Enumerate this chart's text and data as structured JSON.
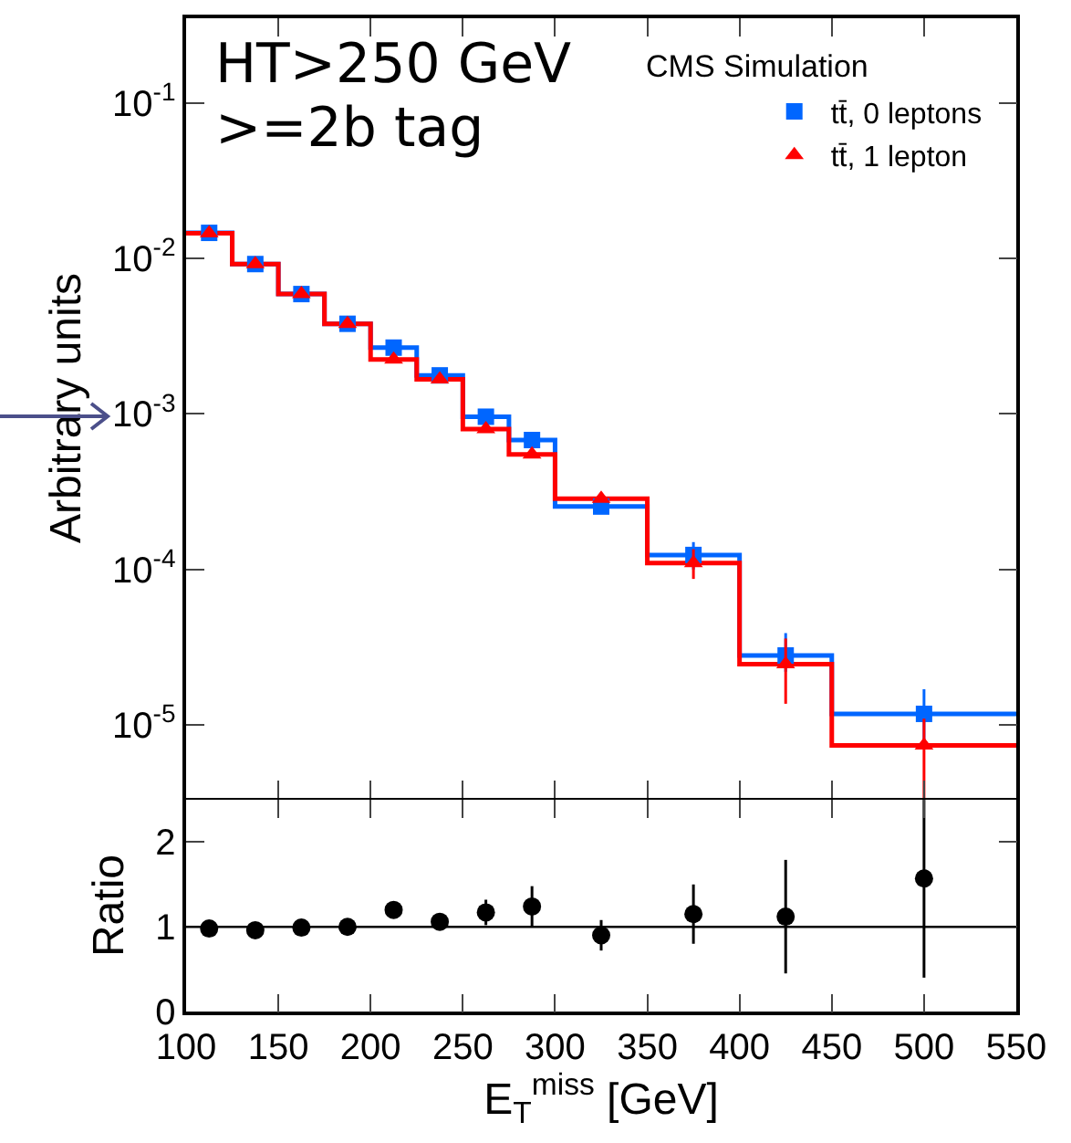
{
  "chart_data": [
    {
      "type": "histogram",
      "ylabel": "Arbitrary units",
      "annotations": [
        "HT>250 GeV",
        ">=2b tag",
        "CMS Simulation"
      ],
      "bins": [
        100,
        125,
        150,
        175,
        200,
        225,
        250,
        275,
        300,
        350,
        400,
        450,
        550
      ],
      "series": [
        {
          "color": "#0066ff",
          "values": [
            0.0146,
            0.0092,
            0.0059,
            0.0038,
            0.00267,
            0.00177,
            0.00096,
            0.00068,
            0.000254,
            0.000124,
            2.8e-05,
            1.18e-05
          ]
        },
        {
          "color": "#ff0000",
          "values": [
            0.0145,
            0.0092,
            0.0059,
            0.0038,
            0.00224,
            0.00167,
            0.0008,
            0.00055,
            0.000285,
            0.00011,
            2.46e-05,
            7.4e-06
          ]
        },
        {
          "type": "scatter",
          "name": "tt̄, 0 leptons",
          "color": "#0066ff",
          "marker": "square",
          "x": [
            112.5,
            137.5,
            162.5,
            187.5,
            212.5,
            237.5,
            262.5,
            287.5,
            325,
            375,
            425,
            500
          ],
          "values": [
            0.0146,
            0.0092,
            0.0059,
            0.0038,
            0.00267,
            0.00177,
            0.00096,
            0.00068,
            0.000254,
            0.000124,
            2.8e-05,
            1.18e-05
          ],
          "errors": [
            null,
            null,
            null,
            null,
            null,
            null,
            null,
            null,
            null,
            [
              0.0001,
              0.00015
            ],
            [
              2.2e-05,
              3.9e-05
            ],
            [
              8e-06,
              1.7e-05
            ]
          ]
        },
        {
          "type": "scatter",
          "name": "tt̄, 1 lepton",
          "color": "#ff0000",
          "marker": "triangle",
          "x": [
            112.5,
            137.5,
            162.5,
            187.5,
            212.5,
            237.5,
            262.5,
            287.5,
            325,
            375,
            425,
            500
          ],
          "values": [
            0.0145,
            0.0092,
            0.0059,
            0.0038,
            0.00224,
            0.00167,
            0.0008,
            0.00055,
            0.000285,
            0.00011,
            2.46e-05,
            7.4e-06
          ],
          "errors": [
            null,
            null,
            null,
            null,
            null,
            null,
            null,
            null,
            null,
            [
              8.7e-05,
              0.000135
            ],
            [
              1.37e-05,
              3.6e-05
            ],
            [
              3.4e-06,
              1.1e-05
            ]
          ]
        }
      ],
      "log": true,
      "xlim": [
        100,
        550
      ],
      "xticks": [
        {
          "value": 100,
          "label": null
        },
        {
          "value": 150,
          "label": null
        },
        {
          "value": 200,
          "label": null
        },
        {
          "value": 250,
          "label": null
        },
        {
          "value": 300,
          "label": null
        },
        {
          "value": 350,
          "label": null
        },
        {
          "value": 400,
          "label": null
        },
        {
          "value": 450,
          "label": null
        },
        {
          "value": 500,
          "label": null
        },
        {
          "value": 550,
          "label": null
        }
      ],
      "ylim": [
        3.4e-06,
        0.35
      ],
      "yticks": [
        {
          "value": 1e-05,
          "label": "10$^{-5}$"
        },
        {
          "value": 0.0001,
          "label": "10$^{-4}$"
        },
        {
          "value": 0.001,
          "label": "10$^{-3}$"
        },
        {
          "value": 0.01,
          "label": "10$^{-2}$"
        },
        {
          "value": 0.1,
          "label": "10$^{-1}$"
        }
      ],
      "tick_labels": "y",
      "legend": "top right",
      "grid": false
    },
    {
      "type": "scatter",
      "xlabel": "E$_{T}$$^{miss}$ [GeV]",
      "ylabel": "Ratio",
      "color": "#000000",
      "marker": "circle",
      "x": [
        112.5,
        137.5,
        162.5,
        187.5,
        212.5,
        237.5,
        262.5,
        287.5,
        325,
        375,
        425,
        500
      ],
      "values": [
        0.98,
        0.96,
        0.99,
        1.0,
        1.2,
        1.06,
        1.17,
        1.24,
        0.9,
        1.15,
        1.12,
        1.57
      ],
      "errors": [
        null,
        null,
        null,
        null,
        null,
        null,
        0.15,
        0.24,
        0.18,
        0.35,
        0.67,
        [
          0.4,
          2.5
        ]
      ],
      "ref_lines": [
        {
          "axis": "y",
          "value": 1,
          "color": "#000000"
        }
      ],
      "xlim": [
        100,
        550
      ],
      "xticks": [
        100,
        150,
        200,
        250,
        300,
        350,
        400,
        450,
        500,
        550
      ],
      "ylim": [
        0,
        2.5
      ],
      "yticks": [
        0,
        1,
        2
      ],
      "grid": false,
      "legend": false
    }
  ]
}
